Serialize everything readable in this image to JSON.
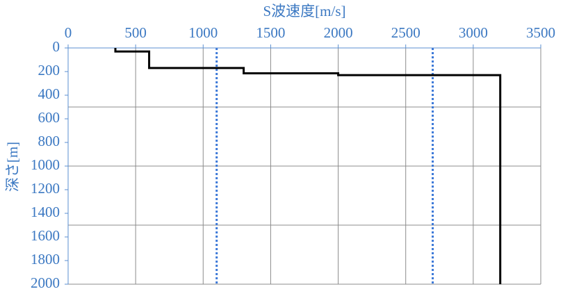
{
  "chart_data": {
    "type": "step-profile",
    "x_label": "S波速度[m/s]",
    "y_label": "深さ[m]",
    "xlim": [
      0,
      3500
    ],
    "xticks": [
      0,
      500,
      1000,
      1500,
      2000,
      2500,
      3000,
      3500
    ],
    "ylim": [
      0,
      2000
    ],
    "yticks": [
      0,
      200,
      400,
      600,
      800,
      1000,
      1200,
      1400,
      1600,
      1800,
      2000
    ],
    "ygrid": [
      500,
      1000,
      1500,
      2000
    ],
    "grid": true,
    "y_inverted": true,
    "series": [
      {
        "color": "#000000",
        "x": [
          350,
          350,
          600,
          600,
          1300,
          1300,
          2000,
          2000,
          3200,
          3200
        ],
        "values": [
          0,
          30,
          30,
          170,
          170,
          215,
          215,
          230,
          230,
          2000
        ]
      }
    ],
    "vlines": {
      "color": "#3b78d8",
      "x": [
        1100,
        2700
      ]
    }
  }
}
